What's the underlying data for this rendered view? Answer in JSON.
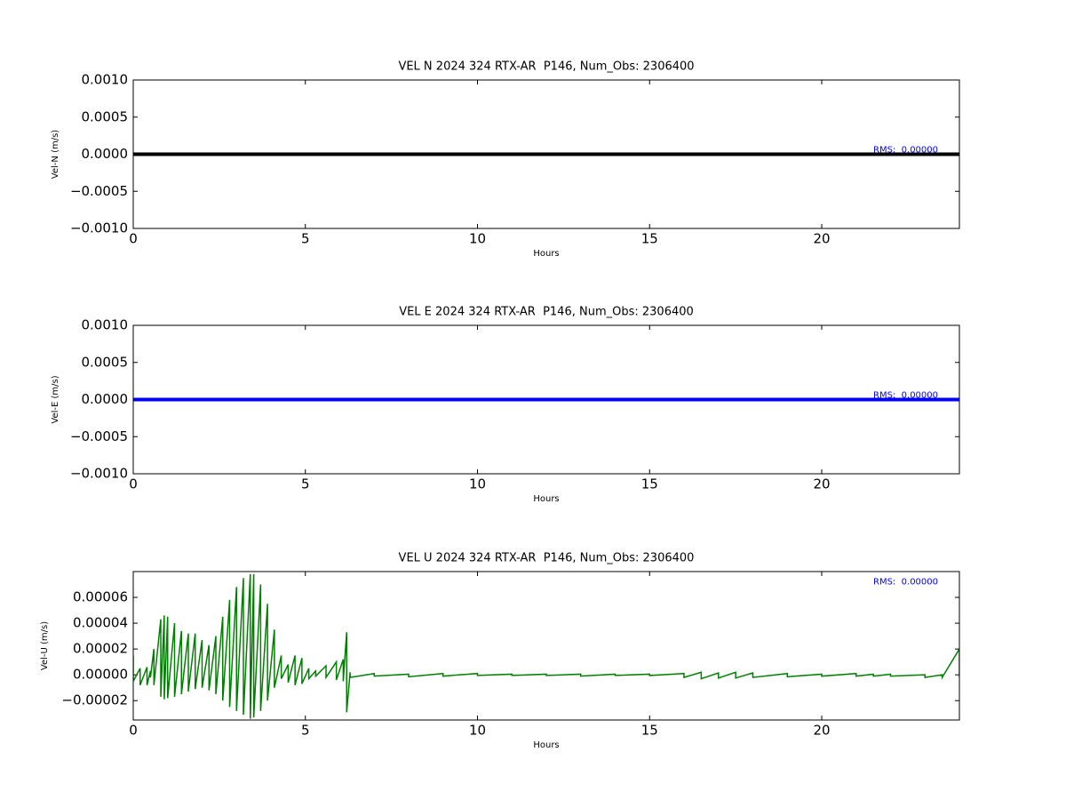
{
  "chart_data": [
    {
      "type": "line",
      "title": "VEL N 2024 324 RTX-AR  P146, Num_Obs: 2306400",
      "x_label": "Hours",
      "y_label": "Vel-N (m/s)",
      "xlim": [
        0,
        24
      ],
      "xticks": [
        0,
        5,
        10,
        15,
        20
      ],
      "ylim": [
        -0.001,
        0.001
      ],
      "yticks": [
        {
          "value": -0.001,
          "label": "−0.0010"
        },
        {
          "value": -0.0005,
          "label": "−0.0005"
        },
        {
          "value": 0,
          "label": "0.0000"
        },
        {
          "value": 0.0005,
          "label": "0.0005"
        },
        {
          "value": 0.001,
          "label": "0.0010"
        }
      ],
      "annotation": "RMS:  0.00000",
      "series": [
        {
          "color": "#000000",
          "x": [
            0,
            24
          ],
          "values": [
            0,
            0
          ]
        }
      ]
    },
    {
      "type": "line",
      "title": "VEL E 2024 324 RTX-AR  P146, Num_Obs: 2306400",
      "x_label": "Hours",
      "y_label": "Vel-E (m/s)",
      "xlim": [
        0,
        24
      ],
      "xticks": [
        0,
        5,
        10,
        15,
        20
      ],
      "ylim": [
        -0.001,
        0.001
      ],
      "yticks": [
        {
          "value": -0.001,
          "label": "−0.0010"
        },
        {
          "value": -0.0005,
          "label": "−0.0005"
        },
        {
          "value": 0,
          "label": "0.0000"
        },
        {
          "value": 0.0005,
          "label": "0.0005"
        },
        {
          "value": 0.001,
          "label": "0.0010"
        }
      ],
      "annotation": "RMS:  0.00000",
      "series": [
        {
          "color": "#0000ff",
          "x": [
            0,
            24
          ],
          "values": [
            0,
            0
          ]
        }
      ]
    },
    {
      "type": "line",
      "title": "VEL U 2024 324 RTX-AR  P146, Num_Obs: 2306400",
      "x_label": "Hours",
      "y_label": "Vel-U (m/s)",
      "xlim": [
        0,
        24
      ],
      "xticks": [
        0,
        5,
        10,
        15,
        20
      ],
      "ylim": [
        -3.5e-05,
        8e-05
      ],
      "yticks": [
        {
          "value": -2e-05,
          "label": "−0.00002"
        },
        {
          "value": 0,
          "label": "0.00000"
        },
        {
          "value": 2e-05,
          "label": "0.00002"
        },
        {
          "value": 4e-05,
          "label": "0.00004"
        },
        {
          "value": 6e-05,
          "label": "0.00006"
        }
      ],
      "annotation": "RMS:  0.00000",
      "series": [
        {
          "color": "#008000",
          "x": [
            0,
            0,
            0.2,
            0.2,
            0.4,
            0.4,
            0.5,
            0.5,
            0.6,
            0.6,
            0.8,
            0.8,
            0.9,
            0.9,
            1.0,
            1.0,
            1.2,
            1.2,
            1.4,
            1.4,
            1.6,
            1.6,
            1.8,
            1.8,
            2.0,
            2.0,
            2.2,
            2.2,
            2.4,
            2.4,
            2.6,
            2.6,
            2.8,
            2.8,
            3.0,
            3.0,
            3.2,
            3.2,
            3.4,
            3.4,
            3.5,
            3.5,
            3.7,
            3.7,
            3.9,
            3.9,
            4.1,
            4.1,
            4.3,
            4.3,
            4.5,
            4.5,
            4.7,
            4.7,
            4.9,
            4.9,
            5.1,
            5.1,
            5.3,
            5.3,
            5.6,
            5.6,
            5.9,
            5.9,
            6.1,
            6.1,
            6.2,
            6.2,
            6.3,
            6.3,
            7,
            7,
            8,
            8,
            9,
            9,
            10,
            10,
            11,
            11,
            12,
            12,
            13,
            13,
            14,
            14,
            15,
            15,
            16,
            16,
            16.5,
            16.5,
            17,
            17,
            17.5,
            17.5,
            18,
            18,
            19,
            19,
            20,
            20,
            21,
            21,
            21.5,
            21.5,
            22,
            22,
            23,
            23,
            23.5,
            23.5,
            24,
            24
          ],
          "values": [
            1.5e-05,
            -5e-06,
            5e-06,
            -8e-06,
            6e-06,
            -8e-06,
            3e-06,
            -2e-06,
            2e-05,
            -8e-06,
            4.3e-05,
            -1.7e-05,
            4.6e-05,
            -1.9e-05,
            4.5e-05,
            -1.8e-05,
            4e-05,
            -1.7e-05,
            3.4e-05,
            -1.5e-05,
            3.2e-05,
            -1.3e-05,
            3.2e-05,
            -1.1e-05,
            2.7e-05,
            -1e-05,
            2.3e-05,
            -1.2e-05,
            3e-05,
            -1.5e-05,
            4.5e-05,
            -2e-05,
            5.8e-05,
            -2.5e-05,
            6.8e-05,
            -2.8e-05,
            7.5e-05,
            -3.1e-05,
            7.8e-05,
            -3.4e-05,
            7.8e-05,
            -3.3e-05,
            7e-05,
            -2.8e-05,
            5.5e-05,
            -2e-05,
            3.5e-05,
            -1e-05,
            1.5e-05,
            -3e-06,
            8e-06,
            -6e-06,
            1.5e-05,
            -8e-06,
            1.3e-05,
            -7e-06,
            5e-06,
            -3e-06,
            3e-06,
            -1e-06,
            7e-06,
            -2e-06,
            1e-05,
            -4e-06,
            1.2e-05,
            -5e-06,
            3.3e-05,
            -2.9e-05,
            2e-06,
            -2e-06,
            1e-06,
            -1e-06,
            5e-07,
            -1.5e-06,
            1e-06,
            -1e-06,
            1e-06,
            -5e-07,
            5e-07,
            -5e-07,
            5e-07,
            -5e-07,
            5e-07,
            -1e-06,
            5e-07,
            -5e-07,
            5e-07,
            -5e-07,
            1e-06,
            -2e-06,
            2e-06,
            -3e-06,
            1.5e-06,
            -2.5e-06,
            2e-06,
            -2.5e-06,
            1.5e-06,
            -2e-06,
            1e-06,
            -1.5e-06,
            5e-07,
            -1e-06,
            1e-06,
            -1e-06,
            5e-07,
            -1e-06,
            5e-07,
            -1e-06,
            0,
            -2e-06,
            0,
            -2e-06,
            2e-05,
            -2e-06
          ]
        }
      ]
    }
  ]
}
